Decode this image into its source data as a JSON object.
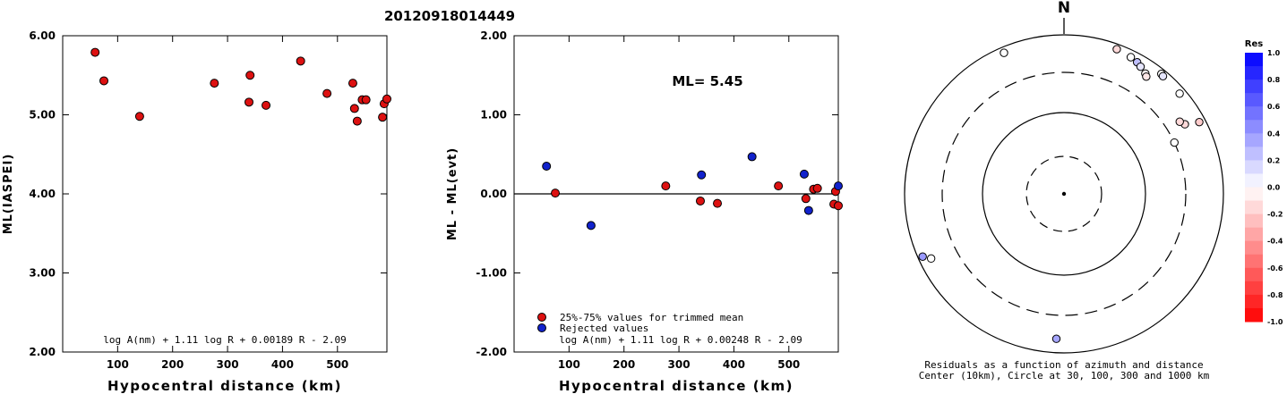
{
  "title": "20120918014449",
  "chart_data": [
    {
      "type": "scatter",
      "id": "ml-vs-distance",
      "xlabel": "Hypocentral distance (km)",
      "ylabel": "ML(IASPEI)",
      "xlim": [
        0,
        590
      ],
      "ylim": [
        2.0,
        6.0
      ],
      "xticks": [
        "100",
        "200",
        "300",
        "400",
        "500"
      ],
      "yticks": [
        "2.00",
        "3.00",
        "4.00",
        "5.00",
        "6.00"
      ],
      "formula": "log A(nm) + 1.11 log R + 0.00189 R - 2.09",
      "series": [
        {
          "color": "#dd1111",
          "points": [
            [
              59,
              5.79
            ],
            [
              75,
              5.43
            ],
            [
              140,
              4.98
            ],
            [
              276,
              5.4
            ],
            [
              339,
              5.16
            ],
            [
              341,
              5.5
            ],
            [
              370,
              5.12
            ],
            [
              433,
              5.68
            ],
            [
              481,
              5.27
            ],
            [
              528,
              5.4
            ],
            [
              531,
              5.08
            ],
            [
              536,
              4.92
            ],
            [
              545,
              5.19
            ],
            [
              552,
              5.19
            ],
            [
              582,
              4.97
            ],
            [
              585,
              5.14
            ],
            [
              590,
              5.2
            ]
          ]
        }
      ]
    },
    {
      "type": "scatter",
      "id": "residual-vs-distance",
      "xlabel": "Hypocentral distance (km)",
      "ylabel": "ML - ML(evt)",
      "xlim": [
        0,
        590
      ],
      "ylim": [
        -2.0,
        2.0
      ],
      "xticks": [
        "100",
        "200",
        "300",
        "400",
        "500"
      ],
      "yticks": [
        "-2.00",
        "-1.00",
        "0.00",
        "1.00",
        "2.00"
      ],
      "annotation": "ML= 5.45",
      "formula": "log A(nm) + 1.11 log R + 0.00248 R - 2.09",
      "legend": [
        {
          "label": "25%-75% values for trimmed mean",
          "color": "#dd1111"
        },
        {
          "label": "Rejected values",
          "color": "#1122cc"
        }
      ],
      "series": [
        {
          "label": "25%-75% values for trimmed mean",
          "color": "#dd1111",
          "points": [
            [
              75,
              0.01
            ],
            [
              276,
              0.1
            ],
            [
              339,
              -0.09
            ],
            [
              370,
              -0.12
            ],
            [
              481,
              0.1
            ],
            [
              531,
              -0.06
            ],
            [
              545,
              0.06
            ],
            [
              552,
              0.07
            ],
            [
              582,
              -0.13
            ],
            [
              585,
              0.03
            ],
            [
              590,
              -0.15
            ]
          ]
        },
        {
          "label": "Rejected values",
          "color": "#1122cc",
          "points": [
            [
              59,
              0.35
            ],
            [
              140,
              -0.4
            ],
            [
              341,
              0.24
            ],
            [
              433,
              0.47
            ],
            [
              528,
              0.25
            ],
            [
              536,
              -0.21
            ],
            [
              590,
              0.1
            ]
          ]
        }
      ]
    },
    {
      "type": "scatter",
      "id": "azimuth-distance-polar",
      "north_label": "N",
      "caption_line1": "Residuals as a function of azimuth and distance",
      "caption_line2": "Center (10km), Circle at 30, 100, 300 and 1000 km",
      "colorbar_title": "Res",
      "colorbar_ticks": [
        "1.0",
        "0.8",
        "0.6",
        "0.4",
        "0.2",
        "0.0",
        "-0.2",
        "-0.4",
        "-0.6",
        "-0.8",
        "-1.0"
      ],
      "points": [
        {
          "az": 337,
          "dist": 830,
          "res": 0.0
        },
        {
          "az": 20,
          "dist": 850,
          "res": -0.15
        },
        {
          "az": 26,
          "dist": 800,
          "res": 0.0
        },
        {
          "az": 29,
          "dist": 760,
          "res": 0.25
        },
        {
          "az": 31,
          "dist": 710,
          "res": 0.1
        },
        {
          "az": 34,
          "dist": 640,
          "res": -0.05
        },
        {
          "az": 35,
          "dist": 600,
          "res": -0.1
        },
        {
          "az": 39,
          "dist": 860,
          "res": 0.0
        },
        {
          "az": 40,
          "dist": 840,
          "res": 0.1
        },
        {
          "az": 49,
          "dist": 820,
          "res": 0.0
        },
        {
          "az": 62,
          "dist": 820,
          "res": -0.2
        },
        {
          "az": 60,
          "dist": 530,
          "res": -0.15
        },
        {
          "az": 58,
          "dist": 480,
          "res": -0.15
        },
        {
          "az": 65,
          "dist": 300,
          "res": 0.0
        },
        {
          "az": 244,
          "dist": 690,
          "res": 0.0
        },
        {
          "az": 246,
          "dist": 860,
          "res": 0.4
        },
        {
          "az": 183,
          "dist": 640,
          "res": 0.35
        }
      ]
    }
  ]
}
